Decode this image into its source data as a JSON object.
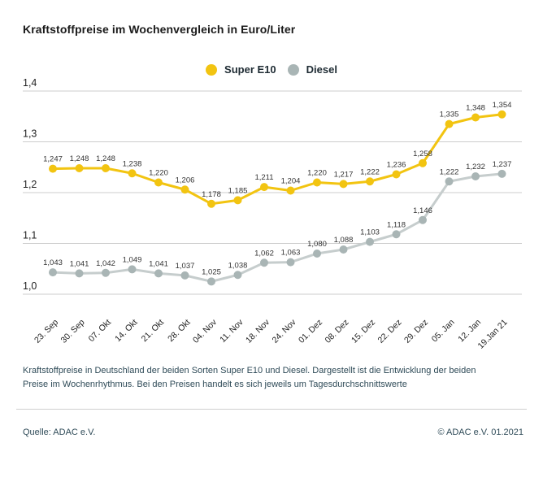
{
  "title": "Kraftstoffpreise im Wochenvergleich in Euro/Liter",
  "legend": [
    {
      "label": "Super E10",
      "color": "#f2c411"
    },
    {
      "label": "Diesel",
      "color": "#a9b5b5"
    }
  ],
  "chart_data": {
    "type": "line",
    "title": "Kraftstoffpreise im Wochenvergleich in Euro/Liter",
    "categories": [
      "23. Sep",
      "30. Sep",
      "07. Okt",
      "14. Okt",
      "21. Okt",
      "28. Okt",
      "04. Nov",
      "11. Nov",
      "18. Nov",
      "24. Nov",
      "01. Dez",
      "08. Dez",
      "15. Dez",
      "22. Dez",
      "29. Dez",
      "05. Jan",
      "12. Jan",
      "19.Jan 21"
    ],
    "series": [
      {
        "name": "Super E10",
        "marker_color": "#f2c411",
        "line_color": "#f2c411",
        "values": [
          1.247,
          1.248,
          1.248,
          1.238,
          1.22,
          1.206,
          1.178,
          1.185,
          1.211,
          1.204,
          1.22,
          1.217,
          1.222,
          1.236,
          1.258,
          1.335,
          1.348,
          1.354
        ]
      },
      {
        "name": "Diesel",
        "marker_color": "#a9b5b5",
        "line_color": "#c6cdcd",
        "values": [
          1.043,
          1.041,
          1.042,
          1.049,
          1.041,
          1.037,
          1.025,
          1.038,
          1.062,
          1.063,
          1.08,
          1.088,
          1.103,
          1.118,
          1.146,
          1.222,
          1.232,
          1.237
        ]
      }
    ],
    "yticks": [
      1.0,
      1.1,
      1.2,
      1.3,
      1.4
    ],
    "ylim": [
      1.0,
      1.4
    ],
    "xlabel": "",
    "ylabel": "",
    "decimal_separator": ",",
    "grid": true,
    "legend_position": "top-center",
    "grid_color": "#cccccc",
    "label_color": "#333333",
    "tick_color": "#222222"
  },
  "footer": {
    "description": "Kraftstoffpreise in Deutschland der beiden Sorten Super E10 und Diesel. Dargestellt ist die Entwicklung der beiden Preise im Wochenrhythmus. Bei den Preisen handelt es sich jeweils um Tagesdurchschnittswerte",
    "source": "Quelle: ADAC e.V.",
    "copyright": "© ADAC e.V. 01.2021"
  }
}
